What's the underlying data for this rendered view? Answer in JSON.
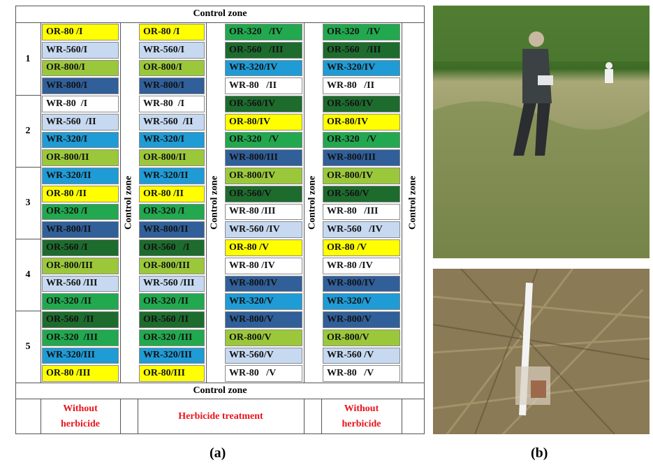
{
  "table": {
    "top_zone": "Control zone",
    "bottom_zone": "Control zone",
    "side_zones": [
      "Control zone",
      "Control zone",
      "Control zone",
      "Control zone"
    ],
    "blocks": [
      "1",
      "2",
      "3",
      "4",
      "5"
    ],
    "columns": [
      {
        "cells": [
          {
            "label": "OR-80 /I",
            "color": "#ffff00"
          },
          {
            "label": "WR-560/I",
            "color": "#c6d9f0"
          },
          {
            "label": "OR-800/I",
            "color": "#9bc83b"
          },
          {
            "label": "WR-800/I",
            "color": "#305f99"
          },
          {
            "label": "WR-80  /I",
            "color": "#ffffff"
          },
          {
            "label": "WR-560  /II",
            "color": "#c6d9f0"
          },
          {
            "label": "WR-320/I",
            "color": "#1f9bd5"
          },
          {
            "label": "OR-800/II",
            "color": "#9bc83b"
          },
          {
            "label": "WR-320/II",
            "color": "#1f9bd5"
          },
          {
            "label": "OR-80 /II",
            "color": "#ffff00"
          },
          {
            "label": "OR-320 /I",
            "color": "#22a84f"
          },
          {
            "label": "WR-800/II",
            "color": "#305f99"
          },
          {
            "label": "OR-560 /I",
            "color": "#1e6b2e"
          },
          {
            "label": "OR-800/III",
            "color": "#9bc83b"
          },
          {
            "label": "WR-560 /III",
            "color": "#c6d9f0"
          },
          {
            "label": "OR-320 /II",
            "color": "#22a84f"
          },
          {
            "label": "OR-560  /II",
            "color": "#1e6b2e"
          },
          {
            "label": "OR-320  /III",
            "color": "#22a84f"
          },
          {
            "label": "WR-320/III",
            "color": "#1f9bd5"
          },
          {
            "label": "OR-80 /III",
            "color": "#ffff00"
          }
        ]
      },
      {
        "cells": [
          {
            "label": "OR-80 /I",
            "color": "#ffff00"
          },
          {
            "label": "WR-560/I",
            "color": "#c6d9f0"
          },
          {
            "label": "OR-800/I",
            "color": "#9bc83b"
          },
          {
            "label": "WR-800/I",
            "color": "#305f99"
          },
          {
            "label": "WR-80  /I",
            "color": "#ffffff"
          },
          {
            "label": "WR-560  /II",
            "color": "#c6d9f0"
          },
          {
            "label": "WR-320/I",
            "color": "#1f9bd5"
          },
          {
            "label": "OR-800/II",
            "color": "#9bc83b"
          },
          {
            "label": "WR-320/II",
            "color": "#1f9bd5"
          },
          {
            "label": "OR-80 /II",
            "color": "#ffff00"
          },
          {
            "label": "OR-320 /I",
            "color": "#22a84f"
          },
          {
            "label": "WR-800/II",
            "color": "#305f99"
          },
          {
            "label": "OR-560   /I",
            "color": "#1e6b2e"
          },
          {
            "label": "OR-800/III",
            "color": "#9bc83b"
          },
          {
            "label": "WR-560 /III",
            "color": "#c6d9f0"
          },
          {
            "label": "OR-320 /II",
            "color": "#22a84f"
          },
          {
            "label": "OR-560 /II",
            "color": "#1e6b2e"
          },
          {
            "label": "OR-320 /III",
            "color": "#22a84f"
          },
          {
            "label": "WR-320/III",
            "color": "#1f9bd5"
          },
          {
            "label": "OR-80/III",
            "color": "#ffff00"
          }
        ]
      },
      {
        "cells": [
          {
            "label": "OR-320   /IV",
            "color": "#22a84f"
          },
          {
            "label": "OR-560   /III",
            "color": "#1e6b2e"
          },
          {
            "label": "WR-320/IV",
            "color": "#1f9bd5"
          },
          {
            "label": "WR-80   /II",
            "color": "#ffffff"
          },
          {
            "label": "OR-560/IV",
            "color": "#1e6b2e"
          },
          {
            "label": "OR-80/IV",
            "color": "#ffff00"
          },
          {
            "label": "OR-320   /V",
            "color": "#22a84f"
          },
          {
            "label": "WR-800/III",
            "color": "#305f99"
          },
          {
            "label": "OR-800/IV",
            "color": "#9bc83b"
          },
          {
            "label": "OR-560/V",
            "color": "#1e6b2e"
          },
          {
            "label": "WR-80 /III",
            "color": "#ffffff"
          },
          {
            "label": "WR-560 /IV",
            "color": "#c6d9f0"
          },
          {
            "label": "OR-80 /V",
            "color": "#ffff00"
          },
          {
            "label": "WR-80 /IV",
            "color": "#ffffff"
          },
          {
            "label": "WR-800/IV",
            "color": "#305f99"
          },
          {
            "label": "WR-320/V",
            "color": "#1f9bd5"
          },
          {
            "label": "WR-800/V",
            "color": "#305f99"
          },
          {
            "label": "OR-800/V",
            "color": "#9bc83b"
          },
          {
            "label": "WR-560/V",
            "color": "#c6d9f0"
          },
          {
            "label": "WR-80   /V",
            "color": "#ffffff"
          }
        ]
      },
      {
        "cells": [
          {
            "label": "OR-320   /IV",
            "color": "#22a84f"
          },
          {
            "label": "OR-560   /III",
            "color": "#1e6b2e"
          },
          {
            "label": "WR-320/IV",
            "color": "#1f9bd5"
          },
          {
            "label": "WR-80   /II",
            "color": "#ffffff"
          },
          {
            "label": "OR-560/IV",
            "color": "#1e6b2e"
          },
          {
            "label": "OR-80/IV",
            "color": "#ffff00"
          },
          {
            "label": "OR-320   /V",
            "color": "#22a84f"
          },
          {
            "label": "WR-800/III",
            "color": "#305f99"
          },
          {
            "label": "OR-800/IV",
            "color": "#9bc83b"
          },
          {
            "label": "OR-560/V",
            "color": "#1e6b2e"
          },
          {
            "label": "WR-80   /III",
            "color": "#ffffff"
          },
          {
            "label": "WR-560   /IV",
            "color": "#c6d9f0"
          },
          {
            "label": "OR-80 /V",
            "color": "#ffff00"
          },
          {
            "label": "WR-80 /IV",
            "color": "#ffffff"
          },
          {
            "label": "WR-800/IV",
            "color": "#305f99"
          },
          {
            "label": "WR-320/V",
            "color": "#1f9bd5"
          },
          {
            "label": "WR-800/V",
            "color": "#305f99"
          },
          {
            "label": "OR-800/V",
            "color": "#9bc83b"
          },
          {
            "label": "WR-560 /V",
            "color": "#c6d9f0"
          },
          {
            "label": "WR-80   /V",
            "color": "#ffffff"
          }
        ]
      }
    ],
    "footer": [
      "Without herbicide",
      "Herbicide treatment",
      "Without herbicide"
    ]
  },
  "captions": [
    "(a)",
    "(b)"
  ]
}
